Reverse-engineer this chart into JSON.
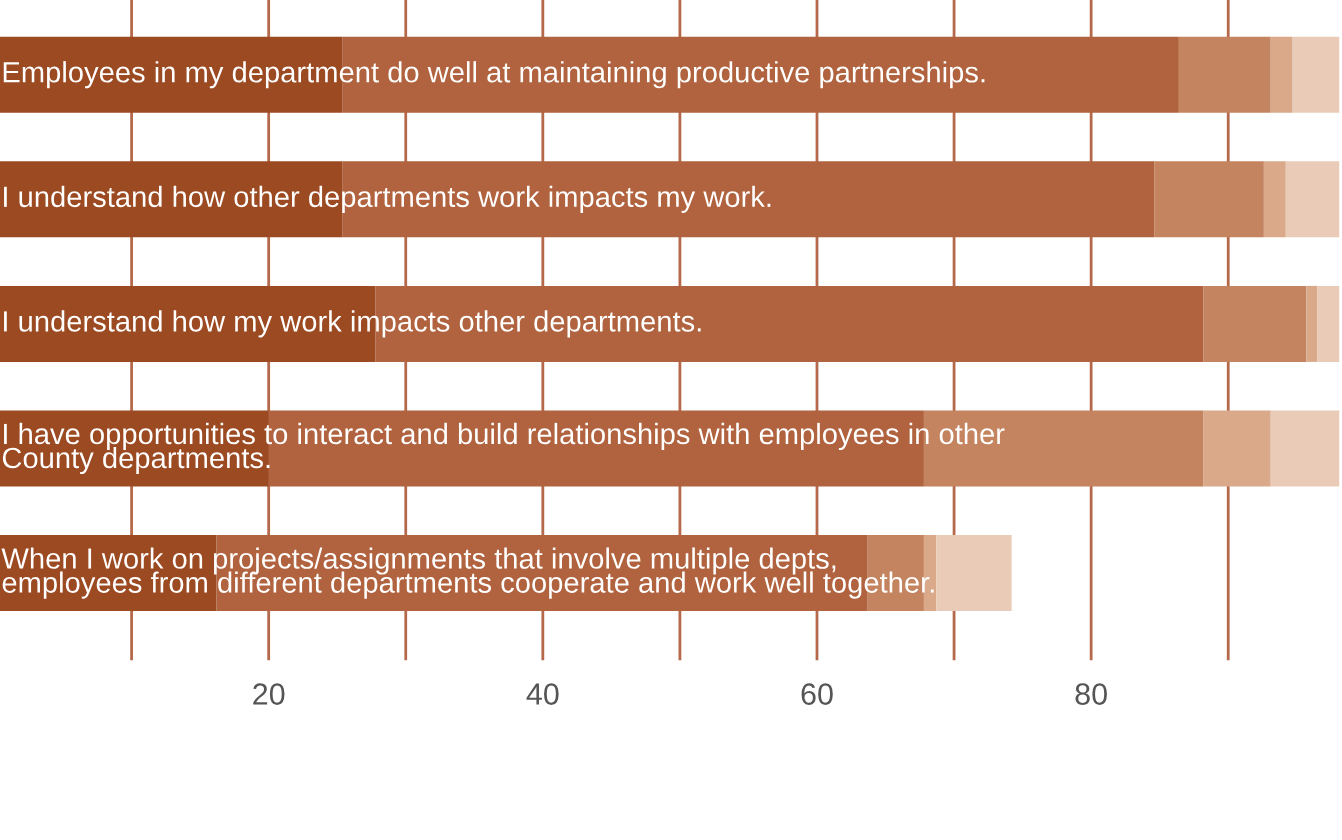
{
  "chart_data": {
    "type": "bar",
    "orientation": "horizontal",
    "stacked": true,
    "categories": [
      "Employees in my department do well at maintaining productive partnerships.",
      "I understand how other departments work impacts my work.",
      "I understand how my work impacts other departments.",
      "I have opportunities to interact and build relationships with employees in other\nCounty departments.",
      "When I work on projects/assignments that involve multiple depts,\nemployees from different departments cooperate and work well together."
    ],
    "series": [
      {
        "color": "#9c4a22",
        "values": [
          25.4,
          25.4,
          27.8,
          20.0,
          16.2
        ]
      },
      {
        "color": "#b0633e",
        "values": [
          61.0,
          59.2,
          60.4,
          47.8,
          47.5
        ]
      },
      {
        "color": "#c4845f",
        "values": [
          6.7,
          8.0,
          7.5,
          20.4,
          4.1
        ]
      },
      {
        "color": "#d9a98a",
        "values": [
          1.6,
          1.6,
          0.8,
          4.9,
          0.9
        ]
      },
      {
        "color": "#e9cbb8",
        "values": [
          3.4,
          3.9,
          1.6,
          5.0,
          5.5
        ]
      }
    ],
    "xlim": [
      0.4,
      98.3
    ],
    "xticks": [
      {
        "value": 10,
        "label": null
      },
      20,
      {
        "value": 30,
        "label": null
      },
      40,
      {
        "value": 50,
        "label": null
      },
      60,
      {
        "value": 70,
        "label": null
      },
      80,
      {
        "value": 90,
        "label": null
      }
    ],
    "grid": "x",
    "legend": false
  }
}
